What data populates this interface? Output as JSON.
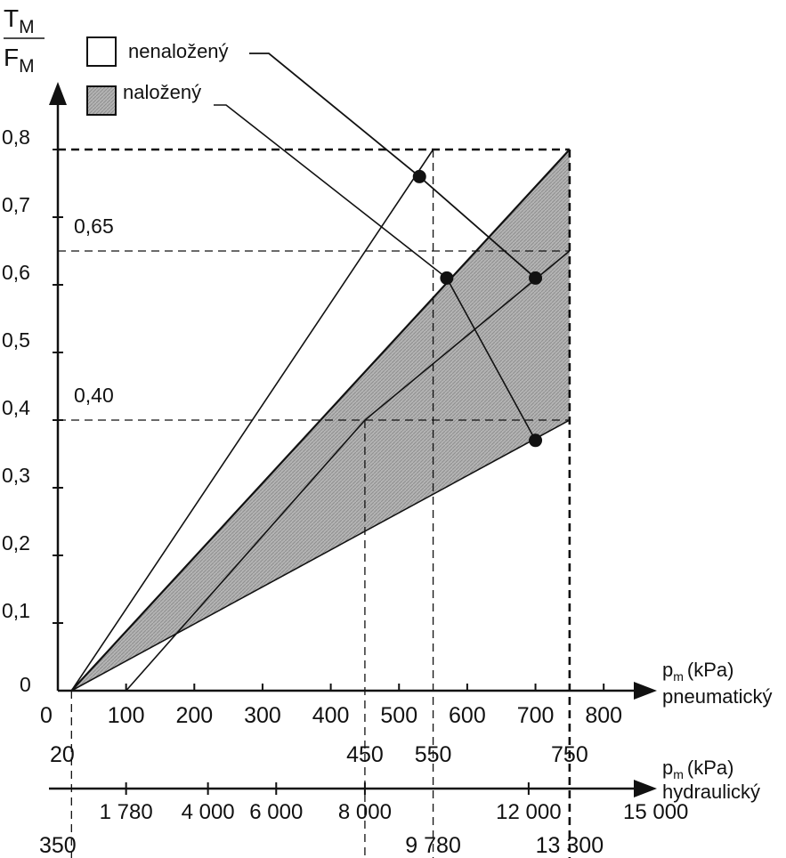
{
  "chart_data": {
    "type": "line",
    "ylabel_num": "T",
    "ylabel_num_sub": "M",
    "ylabel_den": "F",
    "ylabel_den_sub": "M",
    "ylim": [
      0,
      0.8
    ],
    "y_ticks": [
      "0",
      "0,1",
      "0,2",
      "0,3",
      "0,4",
      "0,5",
      "0,6",
      "0,7",
      "0,8"
    ],
    "y_ref_labels": [
      {
        "text": "0,65",
        "value": 0.65
      },
      {
        "text": "0,40",
        "value": 0.4
      }
    ],
    "x_pneumatic": {
      "label_main": "(kPa)",
      "label_p": "p",
      "label_sub": "m",
      "label_type": "pneumatický",
      "tick_labels": [
        "0",
        "100",
        "200",
        "300",
        "400",
        "500",
        "600",
        "700",
        "800"
      ],
      "range": [
        0,
        800
      ],
      "special_values": [
        "20",
        "450",
        "550",
        "750"
      ]
    },
    "x_hydraulic": {
      "label_main": "(kPa)",
      "label_p": "p",
      "label_sub": "m",
      "label_type": "hydraulický",
      "tick_labels": [
        {
          "text": "1 780",
          "pneumatic": 100
        },
        {
          "text": "4 000",
          "pneumatic": 220
        },
        {
          "text": "6 000",
          "pneumatic": 320
        },
        {
          "text": "8 000",
          "pneumatic": 450
        },
        {
          "text": "12 000",
          "pneumatic": 690
        },
        {
          "text": "15 000",
          "pneumatic": 840
        }
      ],
      "special_values": [
        {
          "text": "350",
          "pneumatic": 20
        },
        {
          "text": "9 780",
          "pneumatic": 550
        },
        {
          "text": "13 300",
          "pneumatic": 750
        }
      ]
    },
    "legend": [
      {
        "label": "nenaložený",
        "fill": "#ffffff"
      },
      {
        "label": "naložený",
        "fill": "#a8a8a8"
      }
    ],
    "lines": [
      {
        "from": [
          20,
          0
        ],
        "to": [
          550,
          0.8
        ]
      },
      {
        "from": [
          20,
          0
        ],
        "to": [
          750,
          0.8
        ]
      },
      {
        "from": [
          100,
          0
        ],
        "to": [
          450,
          0.4
        ]
      },
      {
        "from": [
          450,
          0.4
        ],
        "to": [
          750,
          0.65
        ]
      },
      {
        "from": [
          20,
          0
        ],
        "to": [
          750,
          0.4
        ]
      }
    ],
    "operating_points": [
      {
        "x": 530,
        "y": 0.76
      },
      {
        "x": 570,
        "y": 0.61
      },
      {
        "x": 700,
        "y": 0.61
      },
      {
        "x": 700,
        "y": 0.37
      }
    ],
    "dashed_h": [
      0.8,
      0.65,
      0.4
    ],
    "dashed_v": [
      20,
      450,
      550,
      750
    ],
    "colors": {
      "shade": "#a8a8a8",
      "ink": "#111111"
    }
  }
}
